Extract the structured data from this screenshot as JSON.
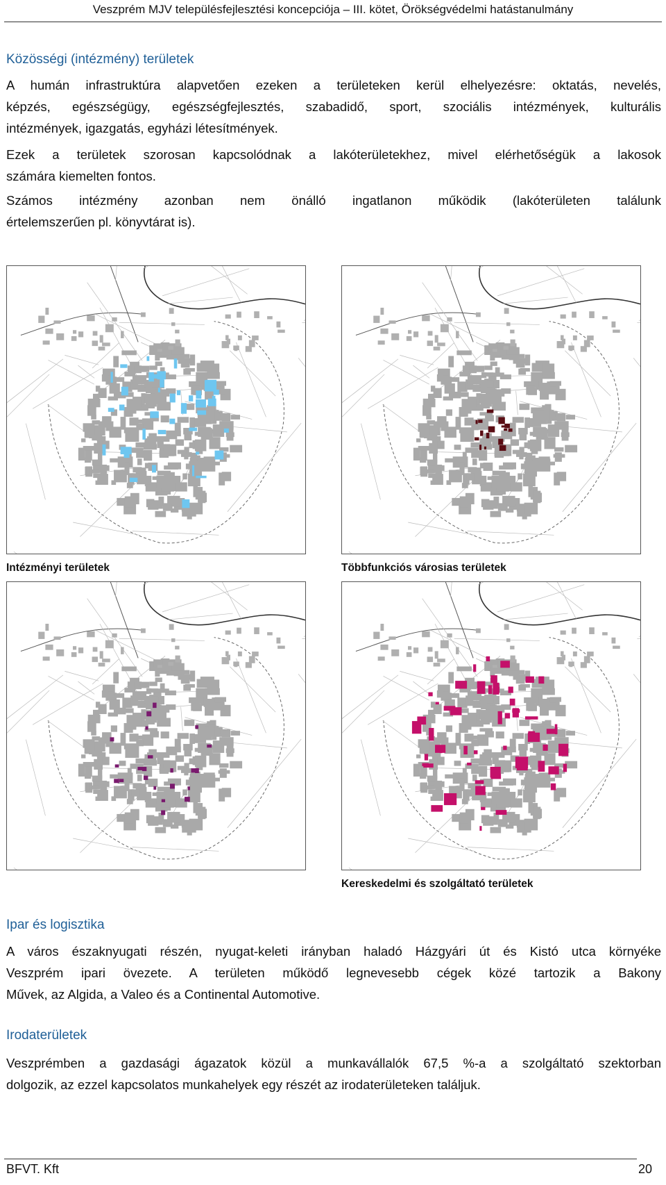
{
  "header": {
    "title": "Veszprém MJV településfejlesztési koncepciója – III. kötet, Örökségvédelmi hatástanulmány"
  },
  "sections": [
    {
      "heading": "Közösségi (intézmény) területek",
      "paragraphs": [
        [
          "A humán infrastruktúra alapvetően ezeken a területeken kerül elhelyezésre: oktatás, nevelés,",
          "képzés, egészségügy, egészségfejlesztés, szabadidő, sport, szociális intézmények, kulturális",
          "intézmények, igazgatás, egyházi létesítmények."
        ],
        [
          "Ezek a területek szorosan kapcsolódnak a lakóterületekhez, mivel elérhetőségük a lakosok",
          "számára kiemelten fontos."
        ],
        [
          "Számos intézmény azonban nem önálló ingatlanon működik (lakóterületen találunk",
          "értelemszerűen pl. könyvtárat is)."
        ]
      ]
    },
    {
      "heading": "Ipar és logisztika",
      "paragraphs": [
        [
          "A város északnyugati részén, nyugat-keleti irányban haladó Házgyári út és Kistó utca környéke",
          "Veszprém ipari övezete. A területen működő legnevesebb cégek közé tartozik a Bakony",
          "Művek, az Algida, a Valeo és a Continental Automotive."
        ]
      ]
    },
    {
      "heading": "Irodaterületek",
      "paragraphs": [
        [
          "Veszprémben a gazdasági ágazatok közül a munkavállalók 67,5 %-a a szolgáltató szektorban",
          "dolgozik, az ezzel kapcsolatos munkahelyek egy részét az irodaterületeken találjuk."
        ]
      ]
    }
  ],
  "figures": {
    "caption_top_left": "Intézményi területek",
    "caption_top_right": "Többfunkciós városias területek",
    "caption_bottom_right": "Kereskedelmi és szolgáltató területek"
  },
  "footer": {
    "company": "BFVT. Kft",
    "page": "20"
  }
}
